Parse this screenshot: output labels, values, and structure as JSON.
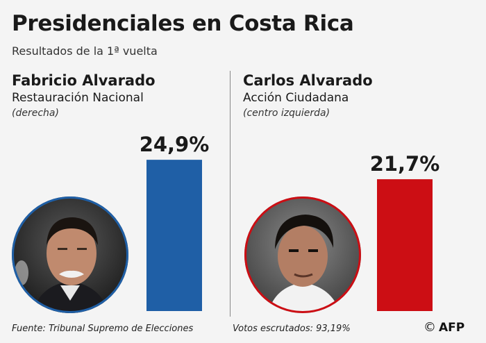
{
  "title": "Presidenciales en Costa Rica",
  "subtitle": "Resultados de la 1ª vuelta",
  "chart_data": {
    "type": "bar",
    "title": "Presidenciales en Costa Rica",
    "subtitle": "Resultados de la 1ª vuelta",
    "ylim": [
      0,
      30
    ],
    "grid": false,
    "categories": [
      "Fabricio Alvarado",
      "Carlos Alvarado"
    ],
    "values": [
      24.9,
      21.7
    ],
    "data_labels": [
      "24,9%",
      "21,7%"
    ],
    "colors": [
      "#1f5fa6",
      "#cc0e14"
    ]
  },
  "candidates": [
    {
      "name": "Fabricio Alvarado",
      "party": "Restauración Nacional",
      "orientation": "(derecha)",
      "label": "24,9%",
      "color": "#1f5fa6",
      "portrait_ring": "#1f5fa6"
    },
    {
      "name": "Carlos Alvarado",
      "party": "Acción Ciudadana",
      "orientation": "(centro izquierda)",
      "label": "21,7%",
      "color": "#cc0e14",
      "portrait_ring": "#cc0e14"
    }
  ],
  "footer": {
    "source": "Fuente: Tribunal Supremo de Elecciones",
    "counted": "Votos escrutados: 93,19%",
    "copyright_symbol": "©",
    "agency": "AFP"
  }
}
